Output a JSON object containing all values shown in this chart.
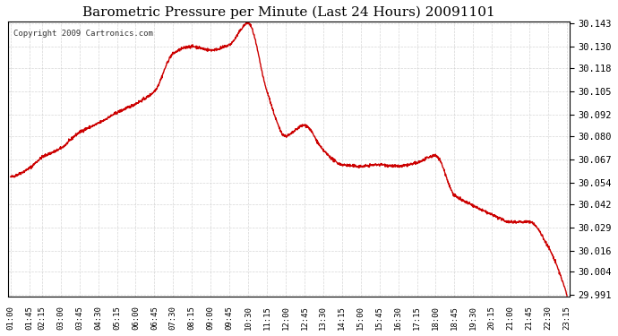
{
  "title": "Barometric Pressure per Minute (Last 24 Hours) 20091101",
  "copyright": "Copyright 2009 Cartronics.com",
  "line_color": "#cc0000",
  "background_color": "#ffffff",
  "grid_color": "#cccccc",
  "ylim": [
    29.991,
    30.143
  ],
  "yticks": [
    29.991,
    30.004,
    30.016,
    30.029,
    30.042,
    30.054,
    30.067,
    30.08,
    30.092,
    30.105,
    30.118,
    30.13,
    30.143
  ],
  "xtick_labels": [
    "01:00",
    "01:45",
    "02:15",
    "03:00",
    "03:45",
    "04:30",
    "05:15",
    "06:00",
    "06:45",
    "07:30",
    "08:15",
    "09:00",
    "09:45",
    "10:30",
    "11:15",
    "12:00",
    "12:45",
    "13:30",
    "14:15",
    "15:00",
    "15:45",
    "16:30",
    "17:15",
    "18:00",
    "18:45",
    "19:30",
    "20:15",
    "21:00",
    "21:45",
    "22:30",
    "23:15"
  ],
  "key_points": {
    "01:00": 30.057,
    "01:45": 30.062,
    "02:15": 30.068,
    "03:00": 30.073,
    "03:45": 30.082,
    "04:30": 30.087,
    "05:15": 30.093,
    "06:00": 30.098,
    "06:45": 30.105,
    "07:30": 30.126,
    "08:15": 30.13,
    "09:00": 30.128,
    "09:45": 30.131,
    "10:30": 30.143,
    "11:15": 30.105,
    "12:00": 30.08,
    "12:45": 30.086,
    "13:30": 30.072,
    "14:15": 30.064,
    "15:00": 30.063,
    "15:45": 30.064,
    "16:30": 30.063,
    "17:15": 30.065,
    "18:00": 30.069,
    "18:45": 30.047,
    "19:30": 30.041,
    "20:15": 30.036,
    "21:00": 30.032,
    "21:45": 30.032,
    "22:30": 30.018,
    "23:15": 29.991
  }
}
